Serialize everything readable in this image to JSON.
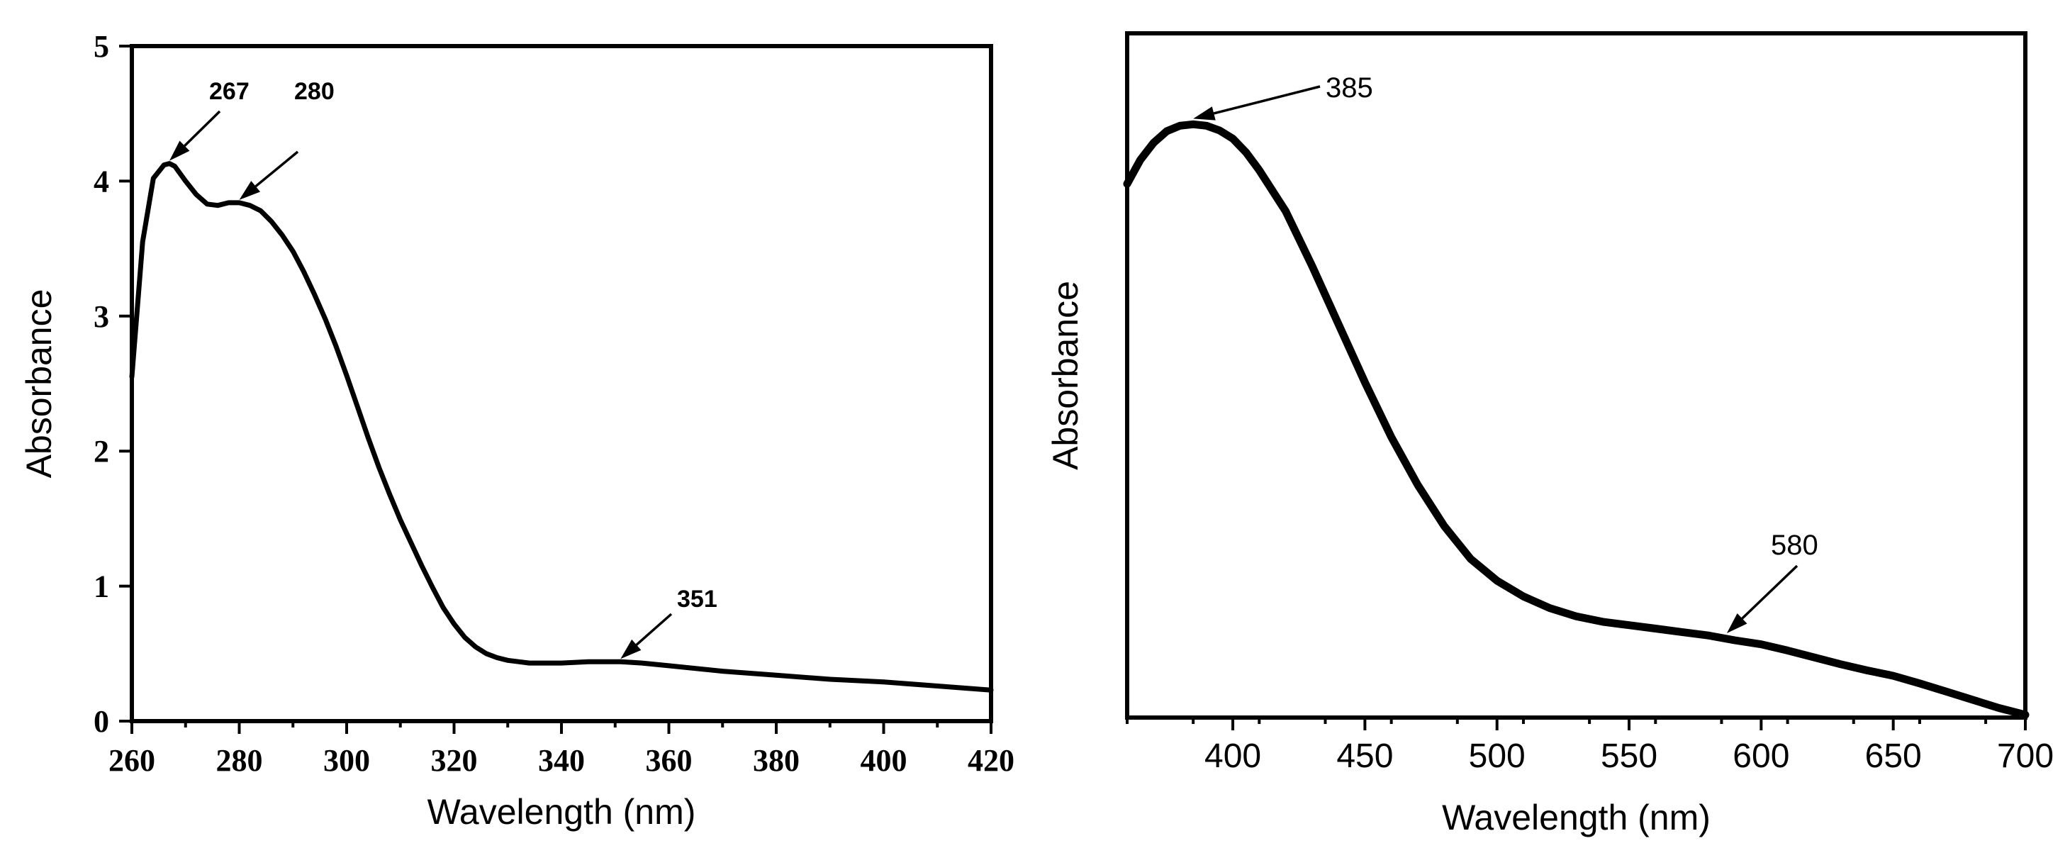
{
  "chart_data": [
    {
      "type": "line",
      "title": "",
      "xlabel": "Wavelength (nm)",
      "ylabel": "Absorbance",
      "xlim": [
        260,
        420
      ],
      "ylim": [
        0,
        5
      ],
      "xticks": [
        "260",
        "280",
        "300",
        "320",
        "340",
        "360",
        "380",
        "400",
        "420"
      ],
      "yticks": [
        "0",
        "1",
        "2",
        "3",
        "4",
        "5"
      ],
      "grid": false,
      "series": [
        {
          "x": [
            260,
            262,
            264,
            266,
            267,
            268,
            270,
            272,
            274,
            276,
            278,
            280,
            282,
            284,
            286,
            288,
            290,
            292,
            294,
            296,
            298,
            300,
            302,
            304,
            306,
            308,
            310,
            312,
            314,
            316,
            318,
            320,
            322,
            324,
            326,
            328,
            330,
            332,
            334,
            336,
            338,
            340,
            345,
            351,
            355,
            360,
            370,
            380,
            390,
            400,
            410,
            420
          ],
          "y": [
            2.55,
            3.55,
            4.02,
            4.12,
            4.13,
            4.11,
            4.0,
            3.9,
            3.83,
            3.82,
            3.84,
            3.84,
            3.82,
            3.78,
            3.7,
            3.6,
            3.48,
            3.33,
            3.16,
            2.98,
            2.78,
            2.56,
            2.33,
            2.1,
            1.88,
            1.68,
            1.49,
            1.32,
            1.15,
            0.99,
            0.84,
            0.72,
            0.62,
            0.55,
            0.5,
            0.47,
            0.45,
            0.44,
            0.43,
            0.43,
            0.43,
            0.43,
            0.44,
            0.44,
            0.43,
            0.41,
            0.37,
            0.34,
            0.31,
            0.29,
            0.26,
            0.23
          ]
        }
      ],
      "annotations": [
        {
          "label": "267",
          "x": 267,
          "y": 4.13
        },
        {
          "label": "280",
          "x": 280,
          "y": 3.84
        },
        {
          "label": "351",
          "x": 351,
          "y": 0.44
        }
      ]
    },
    {
      "type": "line",
      "title": "",
      "xlabel": "Wavelength (nm)",
      "ylabel": "Absorbance",
      "xlim": [
        360,
        700
      ],
      "ylim": [
        0,
        1
      ],
      "xticks": [
        "400",
        "450",
        "500",
        "550",
        "600",
        "650",
        "700"
      ],
      "yticks": [],
      "grid": false,
      "series": [
        {
          "x": [
            360,
            365,
            370,
            375,
            380,
            385,
            390,
            395,
            400,
            405,
            410,
            420,
            430,
            440,
            450,
            460,
            470,
            480,
            490,
            500,
            510,
            520,
            530,
            540,
            550,
            560,
            570,
            580,
            590,
            600,
            610,
            620,
            630,
            640,
            650,
            660,
            670,
            680,
            690,
            700
          ],
          "y": [
            0.78,
            0.815,
            0.84,
            0.857,
            0.865,
            0.867,
            0.865,
            0.858,
            0.846,
            0.826,
            0.8,
            0.74,
            0.66,
            0.575,
            0.49,
            0.41,
            0.34,
            0.28,
            0.232,
            0.2,
            0.177,
            0.16,
            0.148,
            0.14,
            0.135,
            0.13,
            0.125,
            0.12,
            0.113,
            0.107,
            0.098,
            0.088,
            0.078,
            0.069,
            0.061,
            0.05,
            0.038,
            0.026,
            0.014,
            0.004
          ]
        }
      ],
      "annotations": [
        {
          "label": "385",
          "x": 385,
          "y": 0.867
        },
        {
          "label": "580",
          "x": 587,
          "y": 0.115
        }
      ]
    }
  ]
}
